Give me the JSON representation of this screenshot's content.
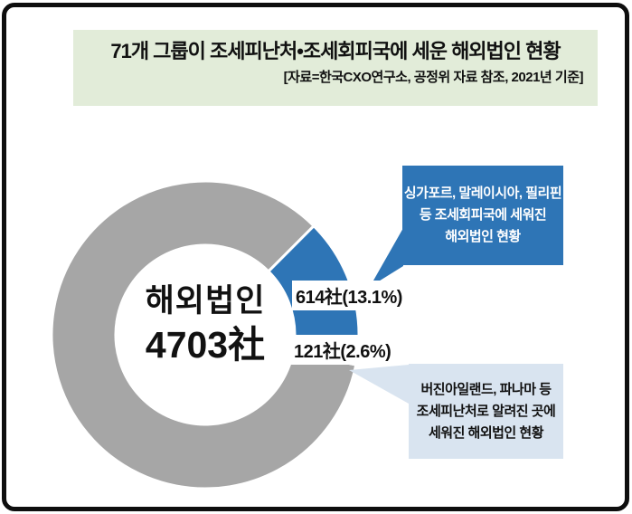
{
  "header": {
    "title": "71개 그룹이 조세피난처•조세회피국에 세운 해외법인 현황",
    "subtitle": "[자료=한국CXO연구소, 공정위 자료 참조, 2021년 기준]",
    "bg": "#e2ecd9"
  },
  "chart_data": {
    "type": "pie",
    "subtype": "donut",
    "title": "71개 그룹이 조세피난처•조세회피국에 세운 해외법인 현황",
    "source_note": "[자료=한국CXO연구소, 공정위 자료 참조, 2021년 기준]",
    "total_label": "해외법인",
    "total_value_label": "4703社",
    "total": 4703,
    "start_angle_deg": 101.2,
    "clockwise": true,
    "donut_hole_ratio": 0.58,
    "legend_position": "none",
    "slices": [
      {
        "value": 3968,
        "percent": 84.3,
        "color": "#a6a6a6",
        "label": ""
      },
      {
        "value": 614,
        "percent": 13.1,
        "color": "#2e75b6",
        "label": "614社(13.1%)"
      },
      {
        "value": 121,
        "percent": 2.6,
        "color": "#d9e4f0",
        "label": "121社(2.6%)"
      }
    ]
  },
  "center": {
    "line1": "해외법인",
    "line2": "4703社"
  },
  "callout_blue": {
    "bg": "#2e75b6",
    "text_color": "#ffffff",
    "lines": {
      "0": "싱가포르, 말레이시아, 필리핀",
      "1": "등 조세회피국에 세워진",
      "2": "해외법인 현황"
    }
  },
  "callout_light": {
    "bg": "#d9e4f0",
    "text_color": "#111111",
    "lines": {
      "0": "버진아일랜드, 파나마 등",
      "1": "조세피난처로 알려진 곳에",
      "2": "세워진 해외법인 현황"
    }
  },
  "frame": {
    "border_color": "#0e0e0e",
    "bg": "#ffffff"
  }
}
